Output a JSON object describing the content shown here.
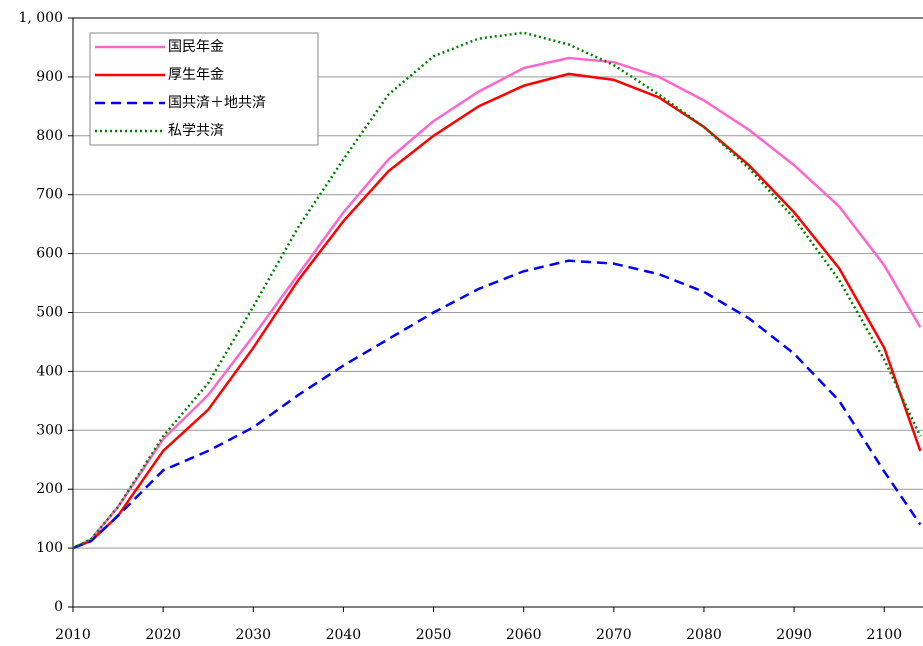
{
  "chart_data": {
    "type": "line",
    "x": [
      2010,
      2012,
      2015,
      2020,
      2025,
      2030,
      2035,
      2040,
      2045,
      2050,
      2055,
      2060,
      2065,
      2070,
      2075,
      2080,
      2085,
      2090,
      2095,
      2100,
      2104
    ],
    "series": [
      {
        "name": "国民年金",
        "color": "#ff66cc",
        "dash": "solid",
        "values": [
          100,
          115,
          170,
          285,
          360,
          460,
          565,
          670,
          760,
          825,
          875,
          915,
          932,
          925,
          900,
          860,
          810,
          750,
          680,
          580,
          475
        ]
      },
      {
        "name": "厚生年金",
        "color": "#ff0000",
        "dash": "solid",
        "values": [
          100,
          112,
          155,
          265,
          335,
          440,
          555,
          655,
          740,
          800,
          850,
          885,
          905,
          895,
          865,
          815,
          750,
          670,
          575,
          440,
          265
        ]
      },
      {
        "name": "国共済＋地共済",
        "color": "#0000ff",
        "dash": "dashed",
        "values": [
          100,
          112,
          155,
          232,
          265,
          305,
          360,
          410,
          455,
          500,
          540,
          570,
          588,
          583,
          565,
          535,
          490,
          430,
          350,
          230,
          140
        ]
      },
      {
        "name": "私学共済",
        "color": "#008000",
        "dash": "dotted",
        "values": [
          100,
          115,
          170,
          290,
          380,
          510,
          645,
          760,
          870,
          935,
          965,
          975,
          955,
          920,
          870,
          815,
          745,
          660,
          555,
          420,
          290
        ]
      }
    ],
    "xlim": [
      2010,
      2104.3
    ],
    "xticks": [
      2010,
      2020,
      2030,
      2040,
      2050,
      2060,
      2070,
      2080,
      2090,
      2100
    ],
    "ylim": [
      0,
      1000
    ],
    "yticks": [
      0,
      100,
      200,
      300,
      400,
      500,
      600,
      700,
      800,
      900,
      {
        "value": 1000,
        "label": "1, 000"
      }
    ],
    "grid": true,
    "legend": "top-left"
  }
}
